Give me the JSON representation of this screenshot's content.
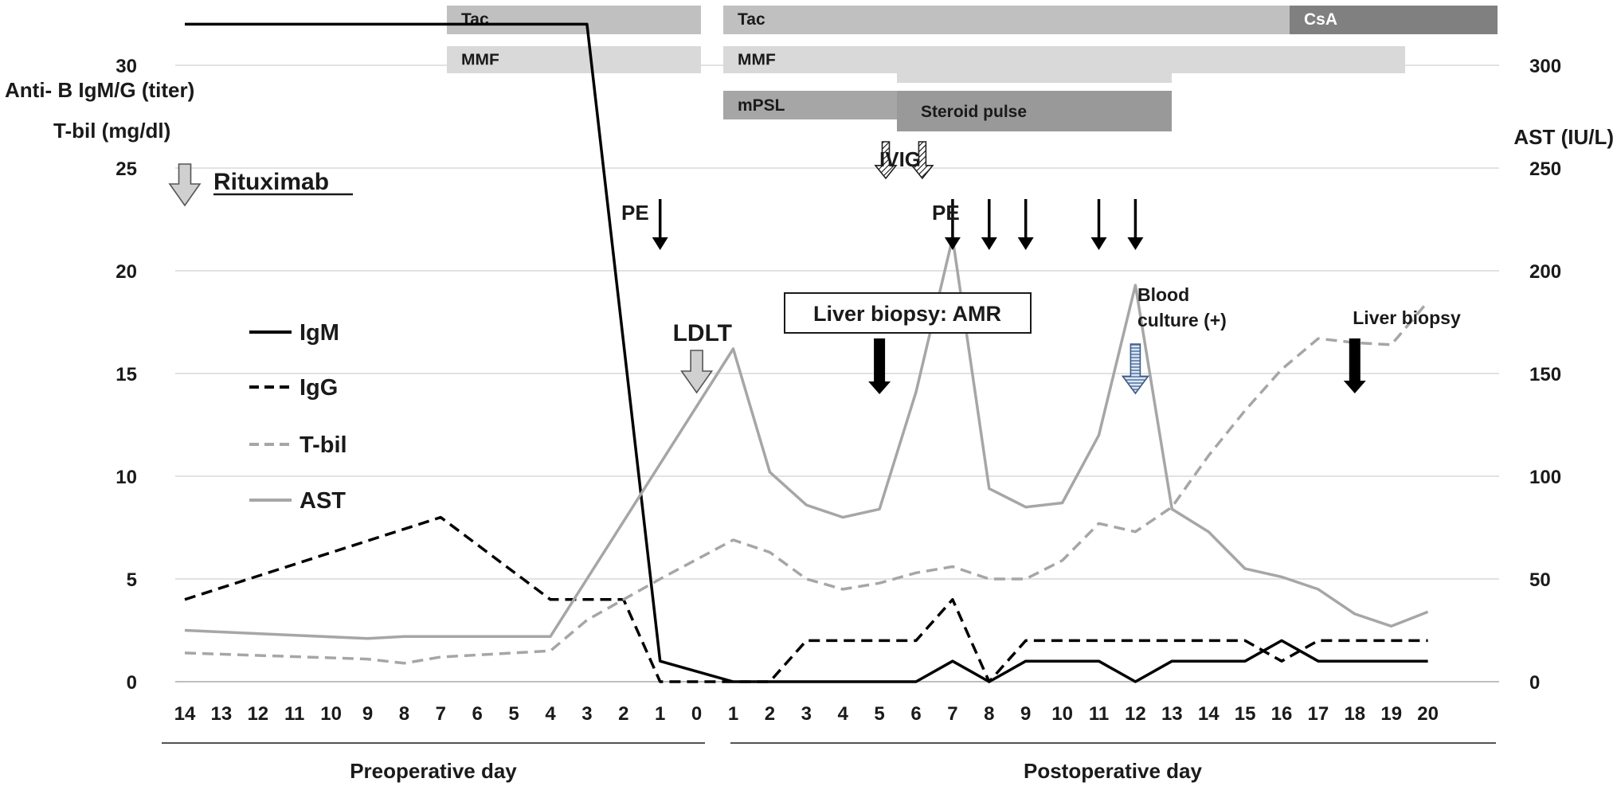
{
  "chart_data": {
    "type": "line",
    "title": "",
    "x": [
      "14",
      "13",
      "12",
      "11",
      "10",
      "9",
      "8",
      "7",
      "6",
      "5",
      "4",
      "3",
      "2",
      "1",
      "0",
      "1",
      "2",
      "3",
      "4",
      "5",
      "6",
      "7",
      "8",
      "9",
      "10",
      "11",
      "12",
      "13",
      "14",
      "15",
      "16",
      "17",
      "18",
      "19",
      "20"
    ],
    "x_groups": [
      "Preoperative day",
      "Postoperative day"
    ],
    "left_axis_labels": [
      "Anti- B IgM/G (titer)",
      "T-bil (mg/dl)"
    ],
    "right_axis_label": "AST (IU/L)",
    "ylim_left": [
      0,
      35
    ],
    "yticks_left": [
      0,
      5,
      10,
      15,
      20,
      25,
      30,
      35
    ],
    "ylim_right": [
      0,
      350
    ],
    "yticks_right": [
      0,
      50,
      100,
      150,
      200,
      250,
      300,
      350
    ],
    "grid": true,
    "legend_position": "left",
    "series": [
      {
        "name": "IgM",
        "axis": "left",
        "color": "#000000",
        "dash": "solid",
        "points": [
          [
            -14,
            32
          ],
          [
            -3,
            32
          ],
          [
            -1,
            1
          ],
          [
            1,
            0
          ],
          [
            2,
            0
          ],
          [
            3,
            0
          ],
          [
            4,
            0
          ],
          [
            5,
            0
          ],
          [
            6,
            0
          ],
          [
            7,
            1
          ],
          [
            8,
            0
          ],
          [
            9,
            1
          ],
          [
            10,
            1
          ],
          [
            11,
            1
          ],
          [
            12,
            0
          ],
          [
            13,
            1
          ],
          [
            14,
            1
          ],
          [
            15,
            1
          ],
          [
            16,
            2
          ],
          [
            17,
            1
          ],
          [
            18,
            1
          ],
          [
            19,
            1
          ],
          [
            20,
            1
          ]
        ]
      },
      {
        "name": "IgG",
        "axis": "left",
        "color": "#000000",
        "dash": "dashed",
        "points": [
          [
            -14,
            4
          ],
          [
            -7,
            8
          ],
          [
            -4,
            4
          ],
          [
            -2,
            4
          ],
          [
            -1,
            0
          ],
          [
            0,
            0
          ],
          [
            1,
            0
          ],
          [
            2,
            0
          ],
          [
            3,
            2
          ],
          [
            4,
            2
          ],
          [
            5,
            2
          ],
          [
            6,
            2
          ],
          [
            7,
            4
          ],
          [
            8,
            0
          ],
          [
            9,
            2
          ],
          [
            10,
            2
          ],
          [
            11,
            2
          ],
          [
            12,
            2
          ],
          [
            13,
            2
          ],
          [
            14,
            2
          ],
          [
            15,
            2
          ],
          [
            16,
            1
          ],
          [
            17,
            2
          ],
          [
            18,
            2
          ],
          [
            19,
            2
          ],
          [
            20,
            2
          ]
        ]
      },
      {
        "name": "T-bil",
        "axis": "left",
        "color": "#a6a6a6",
        "dash": "dashed",
        "points": [
          [
            -14,
            1.4
          ],
          [
            -9,
            1.1
          ],
          [
            -8,
            0.9
          ],
          [
            -7,
            1.2
          ],
          [
            -4,
            1.5
          ],
          [
            -3,
            3
          ],
          [
            -1,
            5
          ],
          [
            1,
            6.9
          ],
          [
            2,
            6.3
          ],
          [
            3,
            5
          ],
          [
            4,
            4.5
          ],
          [
            5,
            4.8
          ],
          [
            6,
            5.3
          ],
          [
            7,
            5.6
          ],
          [
            8,
            5
          ],
          [
            9,
            5
          ],
          [
            10,
            5.9
          ],
          [
            11,
            7.7
          ],
          [
            12,
            7.3
          ],
          [
            13,
            8.5
          ],
          [
            14,
            11
          ],
          [
            15,
            13.2
          ],
          [
            16,
            15.2
          ],
          [
            17,
            16.7
          ],
          [
            18,
            16.5
          ],
          [
            19,
            16.4
          ],
          [
            20,
            18.5
          ]
        ]
      },
      {
        "name": "AST",
        "axis": "right",
        "color": "#a6a6a6",
        "dash": "solid",
        "points": [
          [
            -14,
            25
          ],
          [
            -9,
            21
          ],
          [
            -8,
            22
          ],
          [
            -4,
            22
          ],
          [
            1,
            162
          ],
          [
            2,
            102
          ],
          [
            3,
            86
          ],
          [
            4,
            80
          ],
          [
            5,
            84
          ],
          [
            6,
            141
          ],
          [
            7,
            216
          ],
          [
            8,
            94
          ],
          [
            9,
            85
          ],
          [
            10,
            87
          ],
          [
            11,
            120
          ],
          [
            12,
            193
          ],
          [
            13,
            84
          ],
          [
            14,
            73
          ],
          [
            15,
            55
          ],
          [
            16,
            51
          ],
          [
            17,
            45
          ],
          [
            18,
            33
          ],
          [
            19,
            27
          ],
          [
            20,
            34
          ]
        ]
      }
    ],
    "treatment_bars": [
      {
        "label": "Tac",
        "start": -14,
        "end": -1,
        "row": 1,
        "shade": "#c0c0c0"
      },
      {
        "label": "MMF",
        "start": -14,
        "end": -1,
        "row": 2,
        "shade": "#d9d9d9"
      },
      {
        "label": "Tac",
        "start": 0,
        "end": 15,
        "row": 1,
        "shade": "#c0c0c0"
      },
      {
        "label": "CsA",
        "start": 15,
        "end": 20,
        "row": 1,
        "shade": "#808080"
      },
      {
        "label": "MMF",
        "start": 0,
        "end": 18,
        "row": 2,
        "shade": "#d9d9d9"
      },
      {
        "label": "",
        "start": 5,
        "end": 12,
        "row": 2.5,
        "shade": "#d9d9d9"
      },
      {
        "label": "mPSL",
        "start": 0,
        "end": 12,
        "row": 3,
        "shade": "#a6a6a6"
      },
      {
        "label": "Steroid pulse",
        "start": 5,
        "end": 12,
        "row": 3.5,
        "shade": "#999999"
      }
    ],
    "annotations": [
      {
        "text": "Rituximab",
        "x": -14,
        "kind": "hollow-arrow",
        "underline": true
      },
      {
        "text": "PE",
        "days": [
          -1
        ],
        "kind": "arrows"
      },
      {
        "text": "PE",
        "days": [
          7,
          8,
          9,
          11,
          12
        ],
        "kind": "arrows"
      },
      {
        "text": "IVIG",
        "days": [
          6,
          7
        ],
        "kind": "hatched-arrows"
      },
      {
        "text": "LDLT",
        "x": 0,
        "kind": "hollow-arrow"
      },
      {
        "text": "Liver biopsy: AMR",
        "x": 5,
        "kind": "boxed-thick-arrow"
      },
      {
        "lines": [
          "Blood",
          "culture (+)"
        ],
        "x": 12,
        "kind": "striped-arrow"
      },
      {
        "text": "Liver biopsy",
        "x": 18,
        "kind": "thick-arrow"
      }
    ]
  }
}
